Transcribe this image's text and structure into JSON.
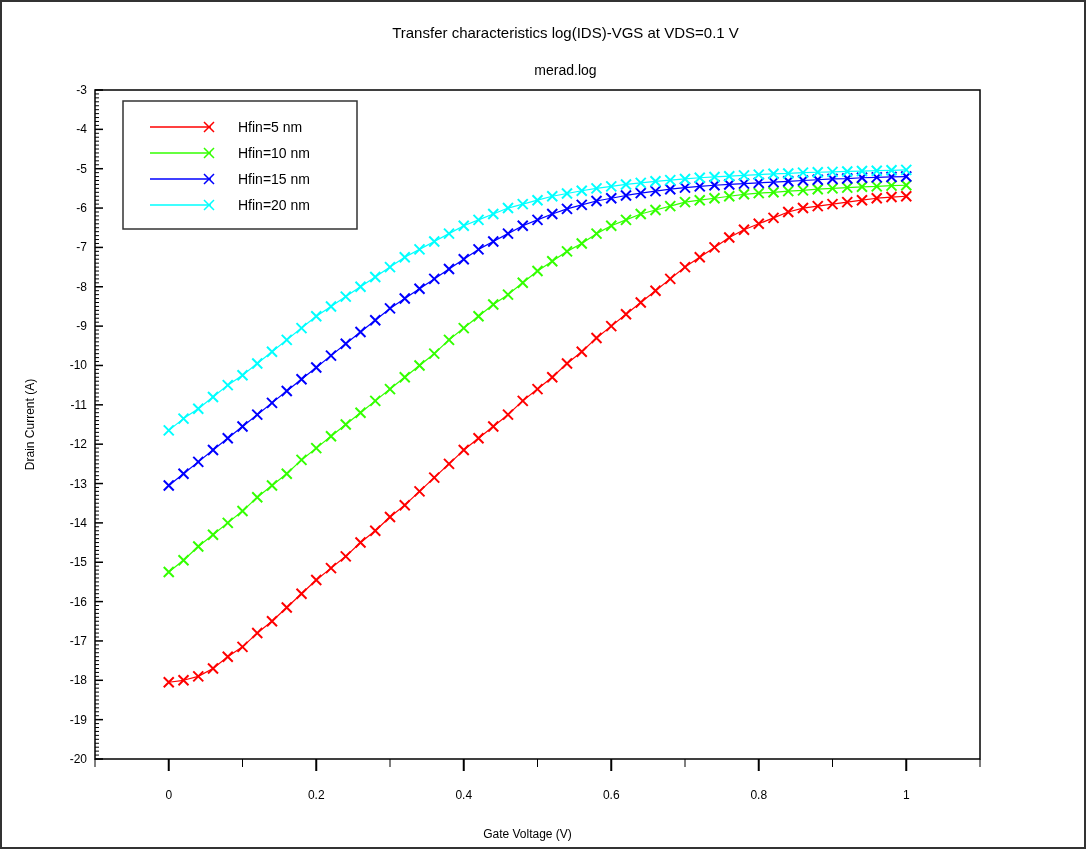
{
  "chart_data": {
    "type": "line",
    "title": "Transfer characteristics log(IDS)-VGS at VDS=0.1 V",
    "subtitle": "merad.log",
    "xlabel": "Gate Voltage (V)",
    "ylabel": "Drain Current (A)",
    "x": [
      0,
      0.02,
      0.04,
      0.06,
      0.08,
      0.1,
      0.12,
      0.14,
      0.16,
      0.18,
      0.2,
      0.22,
      0.24,
      0.26,
      0.28,
      0.3,
      0.32,
      0.34,
      0.36,
      0.38,
      0.4,
      0.42,
      0.44,
      0.46,
      0.48,
      0.5,
      0.52,
      0.54,
      0.56,
      0.58,
      0.6,
      0.62,
      0.64,
      0.66,
      0.68,
      0.7,
      0.72,
      0.74,
      0.76,
      0.78,
      0.8,
      0.82,
      0.84,
      0.86,
      0.88,
      0.9,
      0.92,
      0.94,
      0.96,
      0.98,
      1
    ],
    "series": [
      {
        "name": "Hfin=5 nm",
        "color": "#ff0000",
        "values": [
          -18.05,
          -18.0,
          -17.9,
          -17.7,
          -17.4,
          -17.15,
          -16.8,
          -16.5,
          -16.15,
          -15.8,
          -15.45,
          -15.15,
          -14.85,
          -14.5,
          -14.2,
          -13.85,
          -13.55,
          -13.2,
          -12.85,
          -12.5,
          -12.15,
          -11.85,
          -11.55,
          -11.25,
          -10.9,
          -10.6,
          -10.3,
          -9.95,
          -9.65,
          -9.3,
          -9.0,
          -8.7,
          -8.4,
          -8.1,
          -7.8,
          -7.5,
          -7.25,
          -7.0,
          -6.75,
          -6.55,
          -6.4,
          -6.25,
          -6.1,
          -6.0,
          -5.95,
          -5.9,
          -5.85,
          -5.8,
          -5.75,
          -5.72,
          -5.7
        ]
      },
      {
        "name": "Hfin=10 nm",
        "color": "#33ff00",
        "values": [
          -15.25,
          -14.95,
          -14.6,
          -14.3,
          -14.0,
          -13.7,
          -13.35,
          -13.05,
          -12.75,
          -12.4,
          -12.1,
          -11.8,
          -11.5,
          -11.2,
          -10.9,
          -10.6,
          -10.3,
          -10.0,
          -9.7,
          -9.35,
          -9.05,
          -8.75,
          -8.45,
          -8.2,
          -7.9,
          -7.6,
          -7.35,
          -7.1,
          -6.9,
          -6.65,
          -6.45,
          -6.3,
          -6.15,
          -6.05,
          -5.95,
          -5.85,
          -5.8,
          -5.75,
          -5.7,
          -5.65,
          -5.62,
          -5.6,
          -5.57,
          -5.55,
          -5.52,
          -5.5,
          -5.48,
          -5.46,
          -5.45,
          -5.43,
          -5.42
        ]
      },
      {
        "name": "Hfin=15 nm",
        "color": "#0000ff",
        "values": [
          -13.05,
          -12.75,
          -12.45,
          -12.15,
          -11.85,
          -11.55,
          -11.25,
          -10.95,
          -10.65,
          -10.35,
          -10.05,
          -9.75,
          -9.45,
          -9.15,
          -8.85,
          -8.55,
          -8.3,
          -8.05,
          -7.8,
          -7.55,
          -7.3,
          -7.05,
          -6.85,
          -6.65,
          -6.45,
          -6.3,
          -6.15,
          -6.02,
          -5.92,
          -5.82,
          -5.75,
          -5.68,
          -5.62,
          -5.57,
          -5.52,
          -5.48,
          -5.45,
          -5.42,
          -5.4,
          -5.38,
          -5.36,
          -5.34,
          -5.32,
          -5.3,
          -5.28,
          -5.26,
          -5.25,
          -5.23,
          -5.22,
          -5.21,
          -5.2
        ]
      },
      {
        "name": "Hfin=20 nm",
        "color": "#00ffff",
        "values": [
          -11.65,
          -11.35,
          -11.1,
          -10.8,
          -10.5,
          -10.25,
          -9.95,
          -9.65,
          -9.35,
          -9.05,
          -8.75,
          -8.5,
          -8.25,
          -8.0,
          -7.75,
          -7.5,
          -7.25,
          -7.05,
          -6.85,
          -6.65,
          -6.45,
          -6.3,
          -6.15,
          -6.0,
          -5.9,
          -5.8,
          -5.7,
          -5.63,
          -5.56,
          -5.5,
          -5.45,
          -5.4,
          -5.36,
          -5.32,
          -5.29,
          -5.26,
          -5.23,
          -5.21,
          -5.19,
          -5.17,
          -5.15,
          -5.13,
          -5.12,
          -5.1,
          -5.09,
          -5.08,
          -5.07,
          -5.06,
          -5.05,
          -5.04,
          -5.03
        ]
      }
    ],
    "xlim": [
      -0.1,
      1.1
    ],
    "xticks": [
      {
        "value": -0.1,
        "label": null
      },
      0,
      {
        "value": 0.1,
        "label": null
      },
      0.2,
      {
        "value": 0.3,
        "label": null
      },
      0.4,
      {
        "value": 0.5,
        "label": null
      },
      0.6,
      {
        "value": 0.7,
        "label": null
      },
      0.8,
      {
        "value": 0.9,
        "label": null
      },
      1,
      {
        "value": 1.1,
        "label": null
      }
    ],
    "ylim": [
      -20,
      -3
    ],
    "yticks": [
      -20,
      -19,
      -18,
      -17,
      -16,
      -15,
      -14,
      -13,
      -12,
      -11,
      -10,
      -9,
      -8,
      -7,
      -6,
      -5,
      -4,
      -3
    ],
    "grid": false,
    "legend": "top left",
    "marker": "cross",
    "line_style": "solid"
  }
}
